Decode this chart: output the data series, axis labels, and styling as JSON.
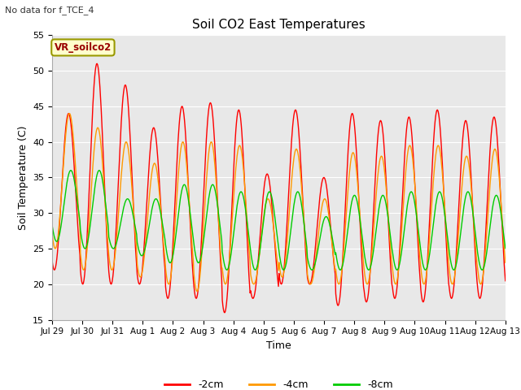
{
  "title": "Soil CO2 East Temperatures",
  "xlabel": "Time",
  "ylabel": "Soil Temperature (C)",
  "note": "No data for f_TCE_4",
  "annotation": "VR_soilco2",
  "ylim": [
    15,
    55
  ],
  "yticks": [
    15,
    20,
    25,
    30,
    35,
    40,
    45,
    50,
    55
  ],
  "xtick_labels": [
    "Jul 29",
    "Jul 30",
    "Jul 31",
    "Aug 1",
    "Aug 2",
    "Aug 3",
    "Aug 4",
    "Aug 5",
    "Aug 6",
    "Aug 7",
    "Aug 8",
    "Aug 9",
    "Aug 10",
    "Aug 11",
    "Aug 12",
    "Aug 13"
  ],
  "colors": {
    "2cm": "#ff0000",
    "4cm": "#ff9900",
    "8cm": "#00cc00"
  },
  "legend_labels": [
    "-2cm",
    "-4cm",
    "-8cm"
  ],
  "fig_facecolor": "#ffffff",
  "axes_facecolor": "#e8e8e8",
  "grid_color": "#ffffff",
  "peak_2cm": [
    44,
    51,
    48,
    42,
    45,
    45.5,
    44.5,
    35.5,
    44.5,
    35,
    44,
    43,
    43.5,
    44.5,
    43,
    43.5
  ],
  "trough_2cm": [
    22,
    20,
    20,
    20,
    18,
    18,
    16,
    18,
    20,
    20,
    17,
    17.5,
    18,
    17.5,
    18,
    18
  ],
  "peak_4cm": [
    44,
    42,
    40,
    37,
    40,
    40,
    39.5,
    32,
    39,
    32,
    38.5,
    38,
    39.5,
    39.5,
    38,
    39
  ],
  "trough_4cm": [
    25,
    22,
    22,
    21,
    20,
    19,
    20,
    20,
    21,
    20,
    20,
    20,
    20,
    20,
    20,
    20
  ],
  "peak_8cm": [
    36,
    36,
    32,
    32,
    34,
    34,
    33,
    33,
    33,
    29.5,
    32.5,
    32.5,
    33,
    33,
    33,
    32.5
  ],
  "trough_8cm": [
    26,
    25,
    25,
    24,
    23,
    23,
    22,
    22,
    22,
    22,
    22,
    22,
    22,
    22,
    22,
    22
  ]
}
